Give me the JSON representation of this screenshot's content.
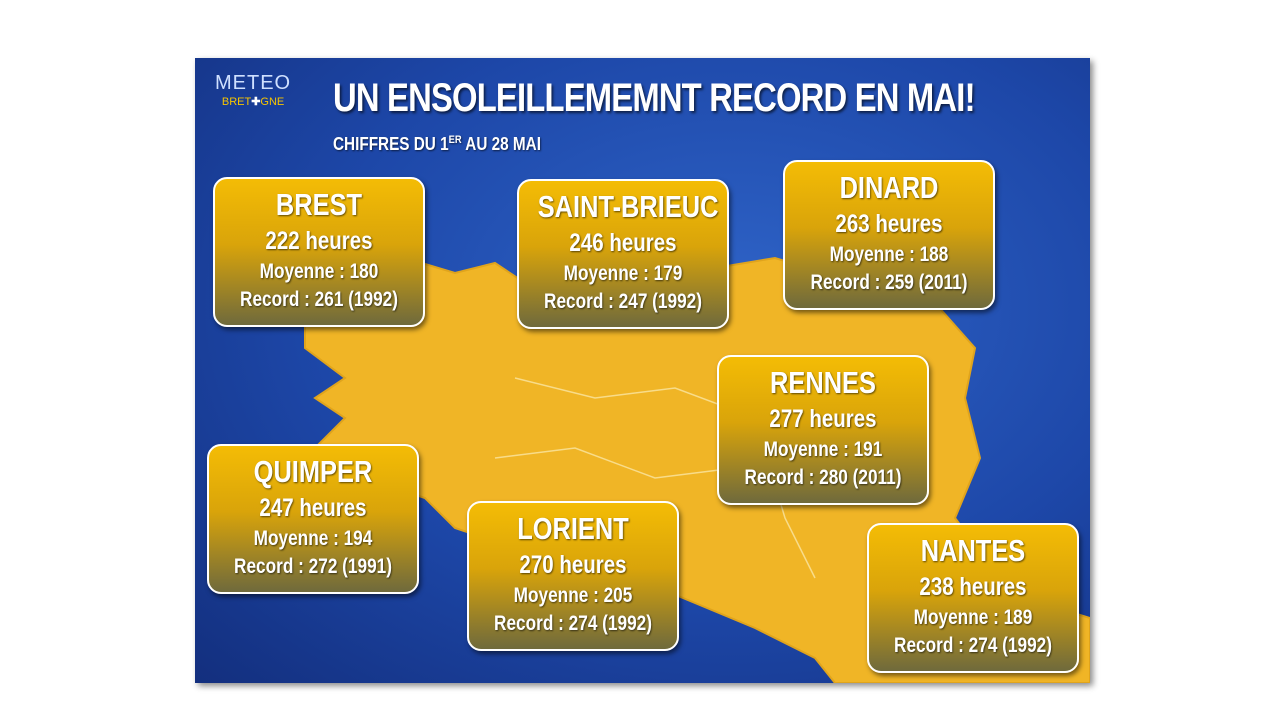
{
  "header": {
    "title": "UN ENSOLEILLEMEMNT RECORD EN MAI!",
    "subtitle_start": "CHIFFRES DU 1",
    "subtitle_sup": "ER",
    "subtitle_end": "AU 28 MAI",
    "logo_top": "METEO",
    "logo_bottom_start": "BRET",
    "logo_bottom_end": "GNE"
  },
  "cities": [
    {
      "name": "BREST",
      "hours": "222 heures",
      "average": "Moyenne : 180",
      "record": "Record : 261 (1992)"
    },
    {
      "name": "SAINT-BRIEUC",
      "hours": "246 heures",
      "average": "Moyenne : 179",
      "record": "Record : 247 (1992)"
    },
    {
      "name": "DINARD",
      "hours": "263 heures",
      "average": "Moyenne : 188",
      "record": "Record : 259 (2011)"
    },
    {
      "name": "RENNES",
      "hours": "277 heures",
      "average": "Moyenne : 191",
      "record": "Record : 280 (2011)"
    },
    {
      "name": "QUIMPER",
      "hours": "247 heures",
      "average": "Moyenne : 194",
      "record": "Record : 272 (1991)"
    },
    {
      "name": "LORIENT",
      "hours": "270 heures",
      "average": "Moyenne : 205",
      "record": "Record : 274 (1992)"
    },
    {
      "name": "NANTES",
      "hours": "238 heures",
      "average": "Moyenne : 189",
      "record": "Record : 274 (1992)"
    }
  ]
}
